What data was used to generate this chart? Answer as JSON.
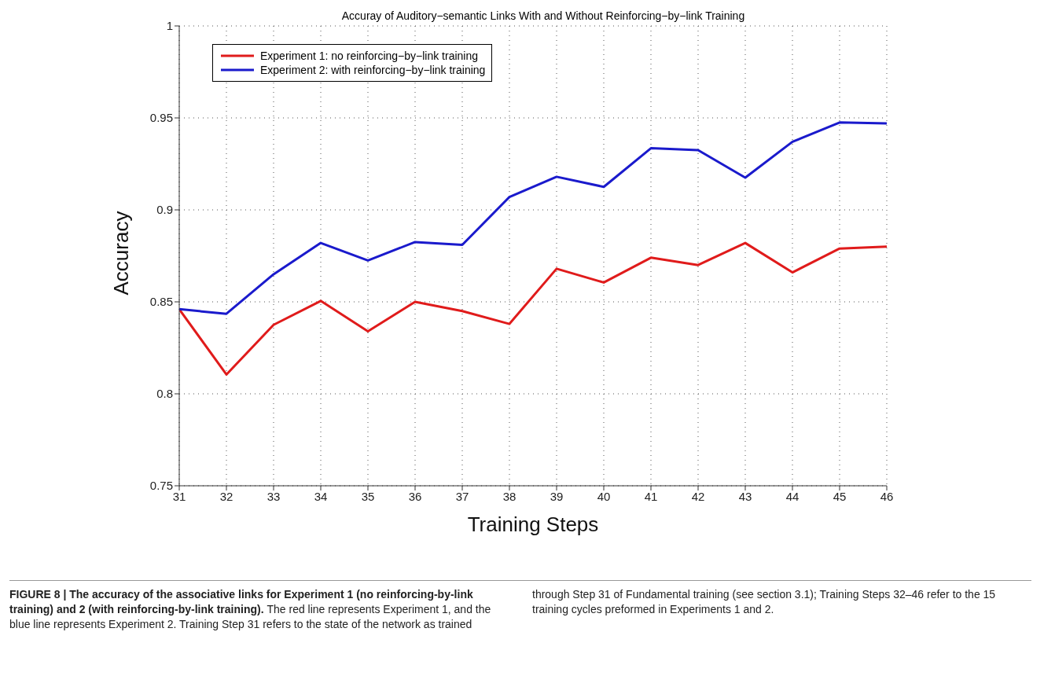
{
  "chart_data": {
    "type": "line",
    "title": "Accuray of Auditory−semantic Links With and Without Reinforcing−by−link Training",
    "xlabel": "Training Steps",
    "ylabel": "Accuracy",
    "x": [
      31,
      32,
      33,
      34,
      35,
      36,
      37,
      38,
      39,
      40,
      41,
      42,
      43,
      44,
      45,
      46
    ],
    "series": [
      {
        "name": "Experiment 1: no reinforcing−by−link training",
        "color": "#e01b1b",
        "values": [
          0.846,
          0.8105,
          0.8375,
          0.8505,
          0.834,
          0.85,
          0.845,
          0.838,
          0.868,
          0.8605,
          0.874,
          0.87,
          0.882,
          0.866,
          0.879,
          0.88
        ]
      },
      {
        "name": "Experiment 2: with reinforcing−by−link training",
        "color": "#1a1acc",
        "values": [
          0.846,
          0.8435,
          0.865,
          0.882,
          0.8725,
          0.8825,
          0.881,
          0.907,
          0.918,
          0.9125,
          0.9335,
          0.9325,
          0.9175,
          0.937,
          0.9475,
          0.947
        ]
      }
    ],
    "xlim": [
      31,
      46
    ],
    "xticks": [
      31,
      32,
      33,
      34,
      35,
      36,
      37,
      38,
      39,
      40,
      41,
      42,
      43,
      44,
      45,
      46
    ],
    "ylim": [
      0.75,
      1
    ],
    "yticks": [
      0.75,
      0.8,
      0.85,
      0.9,
      0.95,
      1
    ],
    "grid": true,
    "legend": "top left",
    "marker": "none",
    "line_style": "solid",
    "annotations": [
      "FIGURE 8 | The accuracy of the associative links for Experiment 1 (no reinforcing-by-link training) and 2 (with reinforcing-by-link training).",
      "The red line represents Experiment 1, and the blue line represents Experiment 2. Training Step 31 refers to the state of the network as trained through Step 31 of Fundamental training (see section 3.1); Training Steps 32–46 refer to the 15 training cycles preformed in Experiments 1 and 2."
    ]
  }
}
